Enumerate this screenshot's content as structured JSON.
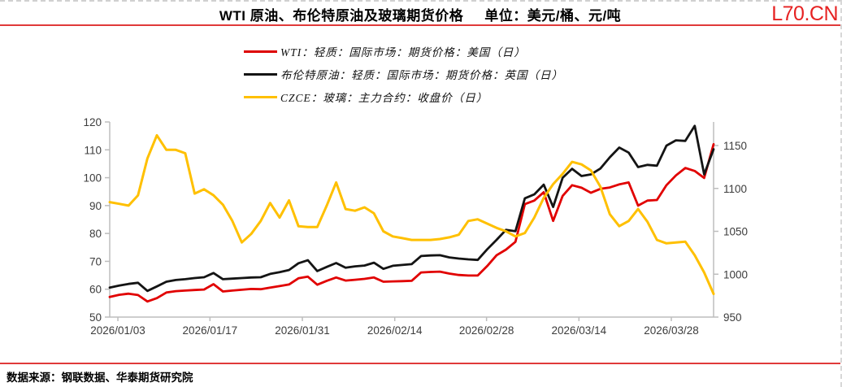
{
  "header": {
    "title": "WTI 原油、布伦特原油及玻璃期货价格",
    "unit": "单位：美元/桶、元/吨",
    "watermark": "L70.CN"
  },
  "legend": {
    "items": [
      {
        "label": "WTI：轻质：国际市场：期货价格：美国（日）",
        "color": "#dd0000"
      },
      {
        "label": "布伦特原油：轻质：国际市场：期货价格：英国（日）",
        "color": "#141414"
      },
      {
        "label": "CZCE：玻璃：主力合约：收盘价（日）",
        "color": "#ffc000"
      }
    ]
  },
  "footer": {
    "source": "数据来源：钢联数据、华泰期货研究院"
  },
  "chart_data": {
    "type": "line",
    "title": "WTI 原油、布伦特原油及玻璃期货价格",
    "grid": false,
    "legend_position": "top-center",
    "n_points": 65,
    "x_ticks": [
      {
        "label": "2026/01/03",
        "f": 0.0135
      },
      {
        "label": "2026/01/17",
        "f": 0.166
      },
      {
        "label": "2026/01/31",
        "f": 0.319
      },
      {
        "label": "2026/02/14",
        "f": 0.472
      },
      {
        "label": "2026/02/28",
        "f": 0.624
      },
      {
        "label": "2026/03/14",
        "f": 0.777
      },
      {
        "label": "2026/03/28",
        "f": 0.93
      }
    ],
    "left_axis": {
      "range": [
        50,
        120
      ],
      "ticks": [
        50,
        60,
        70,
        80,
        90,
        100,
        110,
        120
      ],
      "unit": "美元/桶"
    },
    "right_axis": {
      "range": [
        950,
        1177.5
      ],
      "ticks": [
        950,
        1000,
        1050,
        1100,
        1150
      ],
      "unit": "元/吨"
    },
    "series": [
      {
        "name": "WTI：轻质：国际市场：期货价格：美国（日）",
        "axis": "left",
        "color": "#e10000",
        "width": 2.8,
        "values": [
          57.2,
          58.0,
          58.4,
          57.9,
          55.6,
          56.8,
          58.8,
          59.3,
          59.5,
          59.7,
          59.9,
          61.8,
          59.2,
          59.5,
          59.8,
          60.1,
          60.0,
          60.6,
          61.1,
          61.7,
          63.9,
          64.5,
          61.6,
          63.0,
          64.2,
          63.1,
          63.4,
          63.7,
          64.2,
          62.7,
          62.8,
          62.9,
          63.0,
          66.0,
          66.2,
          66.3,
          65.6,
          65.1,
          64.9,
          64.9,
          68.3,
          72.2,
          74.2,
          77.0,
          90.5,
          91.8,
          94.8,
          84.5,
          93.5,
          97.3,
          96.4,
          94.6,
          96.0,
          96.5,
          97.6,
          98.3,
          90.0,
          91.8,
          92.0,
          97.3,
          100.8,
          103.5,
          102.4,
          99.9,
          112.0
        ]
      },
      {
        "name": "布伦特原油：轻质：国际市场：期货价格：英国（日）",
        "axis": "left",
        "color": "#141414",
        "width": 2.8,
        "values": [
          60.6,
          61.3,
          61.9,
          62.3,
          59.4,
          61.0,
          62.7,
          63.3,
          63.6,
          64.0,
          64.3,
          65.8,
          63.6,
          63.8,
          64.0,
          64.2,
          64.3,
          65.5,
          66.1,
          66.9,
          69.3,
          70.4,
          66.5,
          68.0,
          69.4,
          67.7,
          68.2,
          68.5,
          69.5,
          67.3,
          68.4,
          68.7,
          69.0,
          71.9,
          72.1,
          72.2,
          71.4,
          71.0,
          70.7,
          70.5,
          74.3,
          77.7,
          81.3,
          80.8,
          92.6,
          94.0,
          97.5,
          89.5,
          100.0,
          103.2,
          100.6,
          101.2,
          103.3,
          107.3,
          110.8,
          109.0,
          103.8,
          104.6,
          104.3,
          111.5,
          113.4,
          113.2,
          118.6,
          101.2,
          110.2
        ]
      },
      {
        "name": "CZCE：玻璃：主力合约：收盘价（日）",
        "axis": "right",
        "color": "#ffc000",
        "width": 3,
        "values": [
          1084,
          1082,
          1080,
          1092,
          1135,
          1162,
          1145,
          1145,
          1141,
          1094,
          1099,
          1092,
          1081,
          1062,
          1037,
          1047,
          1062,
          1083,
          1066,
          1086,
          1056,
          1055,
          1055,
          1080,
          1107,
          1076,
          1074,
          1078,
          1071,
          1050,
          1044,
          1042,
          1040,
          1040,
          1040,
          1041,
          1043,
          1046,
          1062,
          1064,
          1059,
          1054,
          1050,
          1044,
          1048,
          1066,
          1089,
          1105,
          1117,
          1131,
          1128,
          1121,
          1102,
          1070,
          1056,
          1062,
          1076,
          1061,
          1040,
          1036,
          1037,
          1038,
          1022,
          1002,
          977
        ]
      }
    ]
  }
}
